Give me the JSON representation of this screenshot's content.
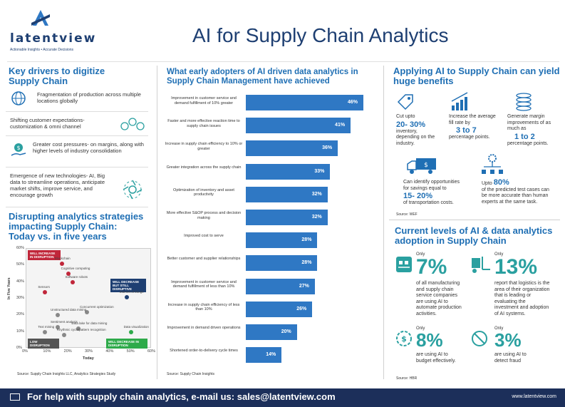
{
  "header": {
    "logo_text": "latentview",
    "logo_tagline": "Actionable Insights • Accurate Decisions",
    "title": "AI for Supply Chain Analytics"
  },
  "key_drivers": {
    "title_line1": "Key drivers to digitize",
    "title_line2": "Supply Chain",
    "items": [
      {
        "text": "Fragmentation of production across multiple locations globally",
        "icon": "globe-arrows-icon"
      },
      {
        "text": "Shifting customer expectations- customization & omni channel",
        "icon": "customer-faces-icon"
      },
      {
        "text": "Greater cost pressures- on margins, along with higher levels of industry consolidation",
        "icon": "money-hand-icon"
      },
      {
        "text": "Emergence of new technologies- AI, Big data to streamline operations, anticipate market shifts, improve service, and encourage growth",
        "icon": "network-icon"
      }
    ]
  },
  "disrupting": {
    "title_line1": "Disrupting analytics strategies",
    "title_line2": "impacting Supply Chain:",
    "title_line3": "Today vs. in five years",
    "ylabel": "In Five Years",
    "xlabel": "Today",
    "source": "Source: Supply Chain Insights LLC, Analytics Strategies Study",
    "tags": {
      "top_left": "WILL INCREASE IN DISRUPTION",
      "mid_right": "WILL DECREASE BUT STILL DISRUPTIVE",
      "bottom_left": "LOW DISRUPTION",
      "bottom_right": "WILL DECREASE IN DISRUPTION"
    }
  },
  "chart_data": {
    "type": "scatter",
    "xlabel": "Today",
    "ylabel": "In Five Years",
    "xlim": [
      0,
      60
    ],
    "ylim": [
      0,
      60
    ],
    "x_ticks": [
      "0%",
      "10%",
      "20%",
      "30%",
      "40%",
      "50%",
      "60%"
    ],
    "y_ticks": [
      "0%",
      "10%",
      "20%",
      "30%",
      "40%",
      "50%",
      "60%"
    ],
    "points": [
      {
        "label": "Blockchain",
        "x": 17,
        "y": 51,
        "color": "#c0263a"
      },
      {
        "label": "Cognitive computing",
        "x": 20,
        "y": 45,
        "color": "#c0263a"
      },
      {
        "label": "Software robots",
        "x": 22,
        "y": 40,
        "color": "#c0263a"
      },
      {
        "label": "Sensors",
        "x": 9,
        "y": 34,
        "color": "#c0263a"
      },
      {
        "label": "Internet of things",
        "x": 48,
        "y": 31,
        "color": "#1e3f72"
      },
      {
        "label": "Concurrent optimization",
        "x": 29,
        "y": 22,
        "color": "#888888"
      },
      {
        "label": "Unstructured data mining",
        "x": 15,
        "y": 20,
        "color": "#888888"
      },
      {
        "label": "Sentiment analysis",
        "x": 15,
        "y": 13,
        "color": "#888888"
      },
      {
        "label": "Text mining",
        "x": 9,
        "y": 10,
        "color": "#888888"
      },
      {
        "label": "Data lake for data mining",
        "x": 25,
        "y": 12,
        "color": "#888888"
      },
      {
        "label": "Rhythmic cycle/pattern recognition",
        "x": 18,
        "y": 8,
        "color": "#888888"
      },
      {
        "label": "Data visualization",
        "x": 50,
        "y": 10,
        "color": "#2eaa4a"
      }
    ]
  },
  "early_adopters": {
    "title_line1": "What early adopters of AI driven data analytics in",
    "title_line2": "Supply Chain Management have achieved",
    "source": "Source: Supply Chain Insights",
    "bars": [
      {
        "label": "Improvement in customer service and demand fulfillment of 10% greater",
        "value": 46,
        "display": "46%"
      },
      {
        "label": "Faster and more effective reaction time to supply chain issues",
        "value": 41,
        "display": "41%"
      },
      {
        "label": "Increase in supply chain efficiency to 10% or greater",
        "value": 36,
        "display": "36%"
      },
      {
        "label": "Greater integration across the supply chain",
        "value": 33,
        "display": "33%"
      },
      {
        "label": "Optimization of inventory and asset productivity",
        "value": 32,
        "display": "32%"
      },
      {
        "label": "More effective S&OP process and decision making",
        "value": 32,
        "display": "32%"
      },
      {
        "label": "Improved cost to serve",
        "value": 28,
        "display": "28%"
      },
      {
        "label": "Better customer and supplier relationships",
        "value": 28,
        "display": "28%"
      },
      {
        "label": "Improvement in customer service and demand fulfillment of less than 10%",
        "value": 27,
        "display": "27%"
      },
      {
        "label": "Increase in supply chain efficiency of less than 10%",
        "value": 26,
        "display": "26%"
      },
      {
        "label": "Improvement in demand driven operations",
        "value": 20,
        "display": "20%"
      },
      {
        "label": "Shortened order-to-delivery cycle times",
        "value": 14,
        "display": "14%"
      }
    ]
  },
  "benefits": {
    "title_line1": "Applying AI to Supply Chain can yield",
    "title_line2": "huge benefits",
    "source": "Source: WEF",
    "b1": {
      "pre": "Cut upto",
      "highlight": "20- 30%",
      "post1": "inventory,",
      "post2": "depending on the",
      "post3": "industry.",
      "icon": "price-tag-icon"
    },
    "b2": {
      "pre1": "Increase the average",
      "pre2": "fill rate by",
      "highlight": "3 to 7",
      "post": "percentage points.",
      "icon": "growth-bars-icon"
    },
    "b3": {
      "pre1": "Generate margin",
      "pre2": "improvements of as",
      "pre3": "much as",
      "highlight": "1 to 2",
      "post": "percentage points.",
      "icon": "coin-stack-icon"
    },
    "b4": {
      "pre1": "Can identify opportunities",
      "pre2": "for savings equal to",
      "highlight": "15- 20%",
      "post": "of transportation costs.",
      "icon": "truck-icon"
    },
    "b5": {
      "pre": "Upto",
      "highlight": "80%",
      "post1": "of the predicted test cases can",
      "post2": "be more accurate than human",
      "post3": "experts at the same task.",
      "icon": "gear-network-icon"
    }
  },
  "adoption": {
    "title_line1": "Current levels of AI & data analytics",
    "title_line2": "adoption in Supply Chain",
    "source": "Source: HBR",
    "a1": {
      "only": "Only",
      "pct": "7%",
      "text": [
        "of all manufacturing",
        "and supply chain",
        "service companies",
        "are using AI to",
        "automate production",
        "activities."
      ],
      "icon": "conveyor-icon"
    },
    "a2": {
      "only": "Only",
      "pct": "13%",
      "text": [
        "report that logistics is the",
        "area of their organization",
        "that is leading or",
        "evaluating the",
        "investment and adoption",
        "of AI systems."
      ],
      "icon": "forklift-icon"
    },
    "a3": {
      "only": "Only",
      "pct": "8%",
      "text": [
        "are using AI to",
        "budget effectively."
      ],
      "icon": "dollar-cycle-icon"
    },
    "a4": {
      "only": "Only",
      "pct": "3%",
      "text": [
        "are using AI to",
        "detect fraud"
      ],
      "icon": "no-fraud-icon"
    }
  },
  "footer": {
    "text": "For help with supply chain analytics, e-mail us: sales@latentview.com",
    "url": "www.latentview.com"
  }
}
